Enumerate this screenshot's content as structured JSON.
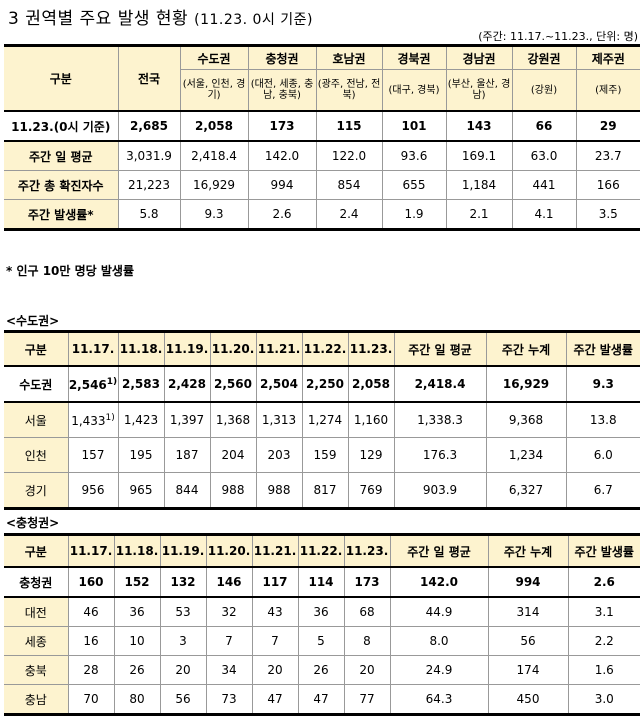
{
  "title": "3 권역별 주요 발생 현황",
  "title_sub": "(11.23. 0시 기준)",
  "top_note": "(주간: 11.17.~11.23., 단위: 명)",
  "summary": {
    "col_label": "구분",
    "col_total": "전국",
    "regions": [
      {
        "name": "수도권",
        "detail": "(서울, 인천, 경기)"
      },
      {
        "name": "충청권",
        "detail": "(대전, 세종, 충남, 충북)"
      },
      {
        "name": "호남권",
        "detail": "(광주, 전남, 전북)"
      },
      {
        "name": "경북권",
        "detail": "(대구, 경북)"
      },
      {
        "name": "경남권",
        "detail": "(부산, 울산, 경남)"
      },
      {
        "name": "강원권",
        "detail": "(강원)"
      },
      {
        "name": "제주권",
        "detail": "(제주)"
      }
    ],
    "rows": [
      {
        "label": "11.23.(0시 기준)",
        "values": [
          "2,685",
          "2,058",
          "173",
          "115",
          "101",
          "143",
          "66",
          "29"
        ]
      },
      {
        "label": "주간 일 평균",
        "values": [
          "3,031.9",
          "2,418.4",
          "142.0",
          "122.0",
          "93.6",
          "169.1",
          "63.0",
          "23.7"
        ]
      },
      {
        "label": "주간 총 확진자수",
        "values": [
          "21,223",
          "16,929",
          "994",
          "854",
          "655",
          "1,184",
          "441",
          "166"
        ]
      },
      {
        "label": "주간 발생률*",
        "values": [
          "5.8",
          "9.3",
          "2.6",
          "2.4",
          "1.9",
          "2.1",
          "4.1",
          "3.5"
        ]
      }
    ]
  },
  "footnote": "* 인구 10만 명당 발생률",
  "sudo": {
    "section": "<수도권>",
    "headers": [
      "구분",
      "11.17.",
      "11.18.",
      "11.19.",
      "11.20.",
      "11.21.",
      "11.22.",
      "11.23.",
      "주간 일 평균",
      "주간 누계",
      "주간 발생률"
    ],
    "sup": "1)",
    "rows": [
      {
        "label": "수도권",
        "values": [
          "2,546",
          "2,583",
          "2,428",
          "2,560",
          "2,504",
          "2,250",
          "2,058",
          "2,418.4",
          "16,929",
          "9.3"
        ]
      },
      {
        "label": "서울",
        "values": [
          "1,433",
          "1,423",
          "1,397",
          "1,368",
          "1,313",
          "1,274",
          "1,160",
          "1,338.3",
          "9,368",
          "13.8"
        ]
      },
      {
        "label": "인천",
        "values": [
          "157",
          "195",
          "187",
          "204",
          "203",
          "159",
          "129",
          "176.3",
          "1,234",
          "6.0"
        ]
      },
      {
        "label": "경기",
        "values": [
          "956",
          "965",
          "844",
          "988",
          "988",
          "817",
          "769",
          "903.9",
          "6,327",
          "6.7"
        ]
      }
    ]
  },
  "chung": {
    "section": "<충청권>",
    "headers": [
      "구분",
      "11.17.",
      "11.18.",
      "11.19.",
      "11.20.",
      "11.21.",
      "11.22.",
      "11.23.",
      "주간 일 평균",
      "주간 누계",
      "주간 발생률"
    ],
    "rows": [
      {
        "label": "충청권",
        "values": [
          "160",
          "152",
          "132",
          "146",
          "117",
          "114",
          "173",
          "142.0",
          "994",
          "2.6"
        ]
      },
      {
        "label": "대전",
        "values": [
          "46",
          "36",
          "53",
          "32",
          "43",
          "36",
          "68",
          "44.9",
          "314",
          "3.1"
        ]
      },
      {
        "label": "세종",
        "values": [
          "16",
          "10",
          "3",
          "7",
          "7",
          "5",
          "8",
          "8.0",
          "56",
          "2.2"
        ]
      },
      {
        "label": "충북",
        "values": [
          "28",
          "26",
          "20",
          "34",
          "20",
          "26",
          "20",
          "24.9",
          "174",
          "1.6"
        ]
      },
      {
        "label": "충남",
        "values": [
          "70",
          "80",
          "56",
          "73",
          "47",
          "47",
          "77",
          "64.3",
          "450",
          "3.0"
        ]
      }
    ]
  }
}
